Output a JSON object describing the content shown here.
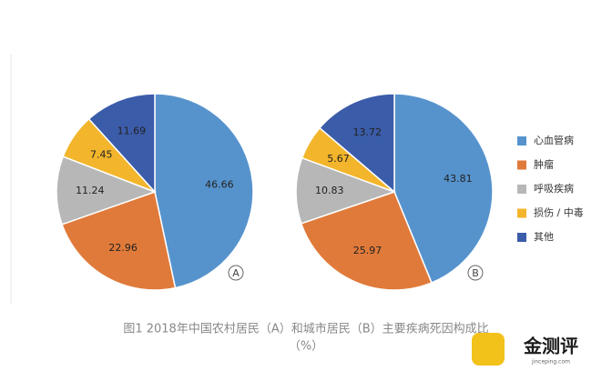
{
  "chart_data": [
    {
      "type": "pie",
      "label": "A",
      "categories": [
        "心血管病",
        "肿瘤",
        "呼吸疾病",
        "损伤 / 中毒",
        "其他"
      ],
      "values": [
        46.66,
        22.96,
        11.24,
        7.45,
        11.69
      ],
      "colors": [
        "#5693cd",
        "#e07a3a",
        "#b7b7b7",
        "#f2b52c",
        "#3b5ca9"
      ]
    },
    {
      "type": "pie",
      "label": "B",
      "categories": [
        "心血管病",
        "肿瘤",
        "呼吸疾病",
        "损伤 / 中毒",
        "其他"
      ],
      "values": [
        43.81,
        25.97,
        10.83,
        5.67,
        13.72
      ],
      "colors": [
        "#5693cd",
        "#e07a3a",
        "#b7b7b7",
        "#f2b52c",
        "#3b5ca9"
      ]
    }
  ],
  "caption": [
    "图1 2018年中国农村居民（A）和城市居民（B）主要疾病死因构成比",
    "（%）"
  ],
  "watermark": {
    "text": "金测评",
    "url": "jinceping.com"
  }
}
